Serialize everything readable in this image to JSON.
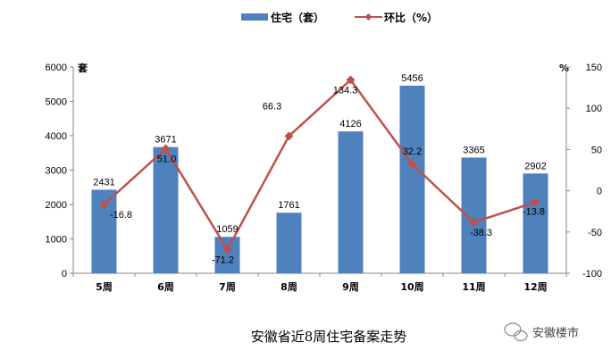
{
  "chart_data": {
    "type": "bar+line",
    "title": "安徽省近8周住宅备案走势",
    "categories": [
      "5周",
      "6周",
      "7周",
      "8周",
      "9周",
      "10周",
      "11周",
      "12周"
    ],
    "series": [
      {
        "name": "住宅（套）",
        "type": "bar",
        "axis": "left",
        "values": [
          2431,
          3671,
          1059,
          1761,
          4126,
          5456,
          3365,
          2902
        ],
        "labels": [
          "2431",
          "3671",
          "1059",
          "1761",
          "4126",
          "5456",
          "3365",
          "2902"
        ]
      },
      {
        "name": "环比（%）",
        "type": "line",
        "axis": "right",
        "values": [
          -16.8,
          51.0,
          -71.2,
          66.3,
          134.3,
          32.2,
          -38.3,
          -13.8
        ],
        "labels": [
          "-16.8",
          "51.0",
          "-71.2",
          "66.3",
          "134.3",
          "32.2",
          "-38.3",
          "-13.8"
        ]
      }
    ],
    "left_axis": {
      "unit": "套",
      "min": 0,
      "max": 6000,
      "ticks": [
        "0",
        "1000",
        "2000",
        "3000",
        "4000",
        "5000",
        "6000"
      ]
    },
    "right_axis": {
      "unit": "%",
      "min": -100,
      "max": 150,
      "ticks": [
        "-100",
        "-50",
        "0",
        "50",
        "100",
        "150"
      ]
    },
    "legend_position": "top",
    "grid": false
  },
  "watermark": "安徽楼市",
  "colors": {
    "bar": "#4F81BD",
    "line": "#C0504D",
    "axis": "#868686"
  }
}
